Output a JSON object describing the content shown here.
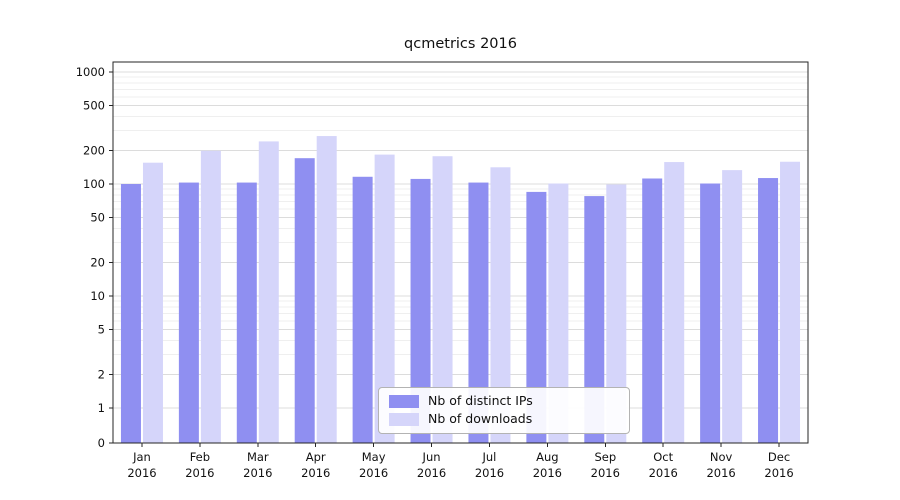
{
  "chart_data": {
    "type": "bar",
    "title": "qcmetrics 2016",
    "yscale": "log-with-zero",
    "ylim": [
      0,
      1200
    ],
    "yticks": [
      0,
      1,
      2,
      5,
      10,
      20,
      50,
      100,
      200,
      500,
      1000
    ],
    "grid": "horizontal, major and minor log gridlines",
    "legend_position": "lower center",
    "categories": [
      [
        "Jan",
        "2016"
      ],
      [
        "Feb",
        "2016"
      ],
      [
        "Mar",
        "2016"
      ],
      [
        "Apr",
        "2016"
      ],
      [
        "May",
        "2016"
      ],
      [
        "Jun",
        "2016"
      ],
      [
        "Jul",
        "2016"
      ],
      [
        "Aug",
        "2016"
      ],
      [
        "Sep",
        "2016"
      ],
      [
        "Oct",
        "2016"
      ],
      [
        "Nov",
        "2016"
      ],
      [
        "Dec",
        "2016"
      ]
    ],
    "series": [
      {
        "name": "Nb of distinct IPs",
        "color": "#8f8ff1",
        "values": [
          100,
          103,
          103,
          170,
          116,
          111,
          103,
          85,
          78,
          112,
          101,
          113
        ]
      },
      {
        "name": "Nb of downloads",
        "color": "#d5d5fa",
        "values": [
          155,
          198,
          240,
          268,
          183,
          177,
          141,
          101,
          99,
          157,
          133,
          158
        ]
      }
    ]
  }
}
